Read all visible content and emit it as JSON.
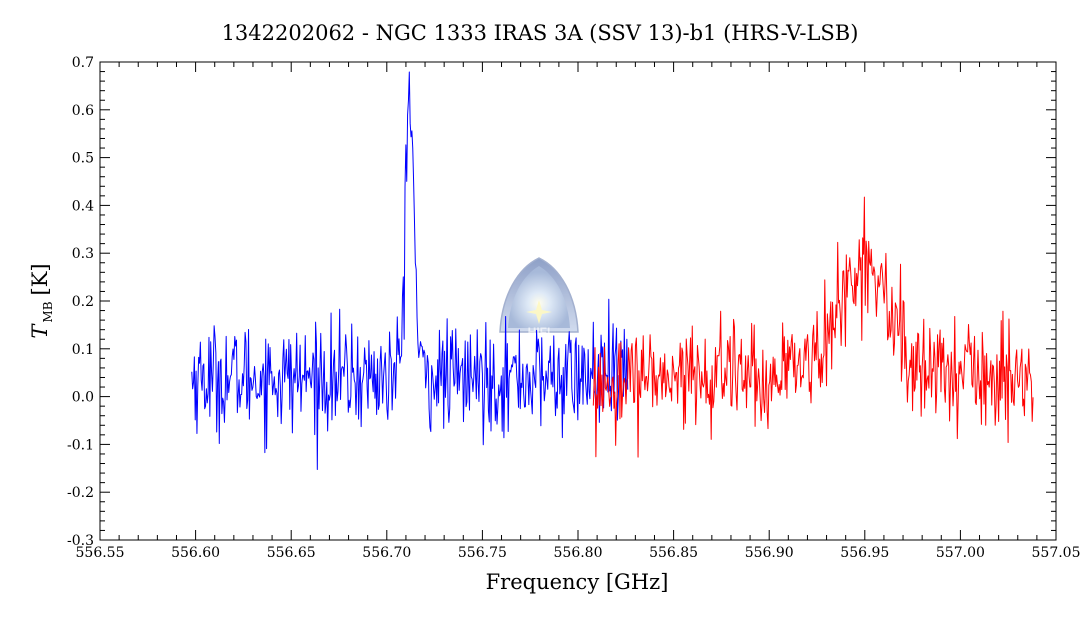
{
  "chart_data": {
    "type": "line",
    "title": "1342202062 - NGC 1333 IRAS 3A (SSV 13)-b1 (HRS-V-LSB)",
    "xlabel": "Frequency [GHz]",
    "ylabel_main": "T",
    "ylabel_sub": "MB",
    "ylabel_unit": "[K]",
    "xlim": [
      556.55,
      557.05
    ],
    "ylim": [
      -0.3,
      0.7
    ],
    "xticks": [
      "556.55",
      "556.60",
      "556.65",
      "556.70",
      "556.75",
      "556.80",
      "556.85",
      "556.90",
      "556.95",
      "557.00",
      "557.05"
    ],
    "yticks": [
      "-0.3",
      "-0.2",
      "-0.1",
      "0.0",
      "0.1",
      "0.2",
      "0.3",
      "0.4",
      "0.5",
      "0.6",
      "0.7"
    ],
    "grid": false,
    "colors": {
      "blue_series": "#0000ff",
      "red_series": "#ff0000"
    },
    "series": [
      {
        "color": "blue",
        "x_range": [
          556.598,
          556.826
        ],
        "noise_rms": 0.055,
        "baseline": 0.04,
        "features": [
          {
            "center": 556.712,
            "peak": 0.6,
            "width": 0.0022
          }
        ],
        "x": [
          556.6,
          556.62,
          556.64,
          556.66,
          556.68,
          556.7,
          556.71,
          556.712,
          556.714,
          556.72,
          556.74,
          556.76,
          556.78,
          556.8,
          556.82
        ],
        "y": [
          0.05,
          0.04,
          0.03,
          0.05,
          0.04,
          0.06,
          0.35,
          0.6,
          0.3,
          0.05,
          0.03,
          0.02,
          0.03,
          0.04,
          0.05
        ]
      },
      {
        "color": "red",
        "x_range": [
          556.808,
          557.038
        ],
        "noise_rms": 0.055,
        "baseline": 0.04,
        "features": [
          {
            "center": 556.948,
            "peak": 0.22,
            "width": 0.014
          }
        ],
        "x": [
          556.81,
          556.83,
          556.85,
          556.87,
          556.89,
          556.91,
          556.93,
          556.95,
          556.97,
          556.99,
          557.01,
          557.03
        ],
        "y": [
          0.05,
          0.05,
          0.06,
          0.05,
          0.06,
          0.08,
          0.2,
          0.28,
          0.12,
          0.06,
          0.04,
          0.04
        ]
      }
    ]
  },
  "watermark": {
    "text": "HIFI",
    "type": "hifi-logo"
  }
}
